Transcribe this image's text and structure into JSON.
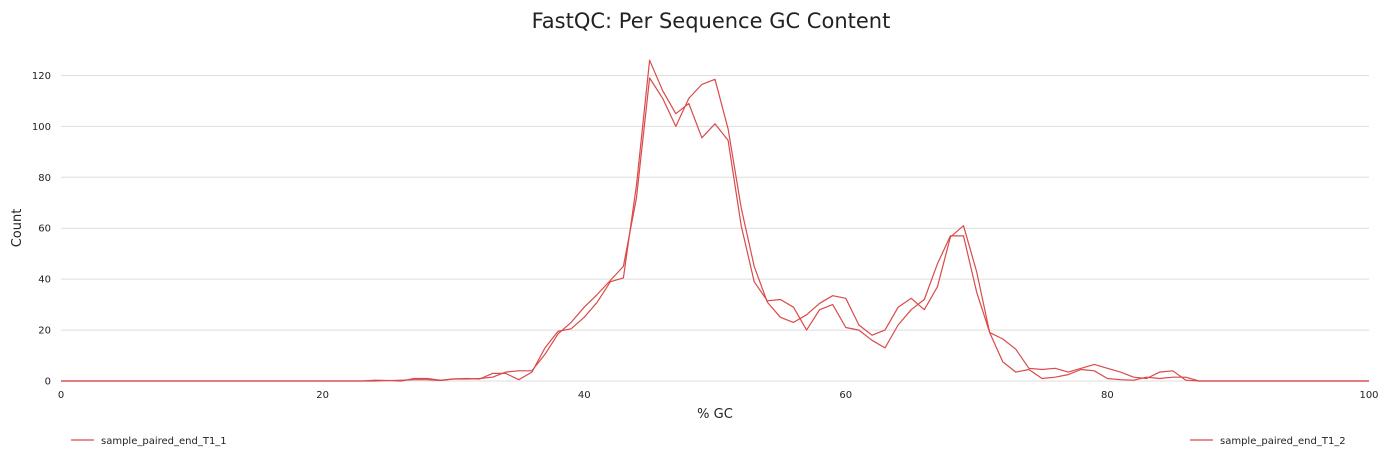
{
  "chart_data": {
    "type": "line",
    "title": "FastQC: Per Sequence GC Content",
    "xlabel": "% GC",
    "ylabel": "Count",
    "xlim": [
      0,
      100
    ],
    "ylim": [
      0,
      130
    ],
    "x_ticks": [
      0,
      20,
      40,
      60,
      80,
      100
    ],
    "y_ticks": [
      0,
      20,
      40,
      60,
      80,
      100,
      120
    ],
    "grid": "horizontal",
    "legend_position": "bottom",
    "series": [
      {
        "name": "sample_paired_end_T1_1",
        "color": "#d94a4a",
        "points": [
          [
            0,
            0
          ],
          [
            20,
            0
          ],
          [
            23,
            0
          ],
          [
            24,
            0.3
          ],
          [
            25,
            0.2
          ],
          [
            26,
            0
          ],
          [
            27,
            1
          ],
          [
            28,
            1
          ],
          [
            29,
            0.3
          ],
          [
            30,
            0.8
          ],
          [
            31,
            1
          ],
          [
            32,
            0.8
          ],
          [
            33,
            3
          ],
          [
            34,
            3
          ],
          [
            35,
            0.5
          ],
          [
            36,
            3.5
          ],
          [
            37,
            13
          ],
          [
            38,
            19.5
          ],
          [
            39,
            20.5
          ],
          [
            40,
            25
          ],
          [
            41,
            31
          ],
          [
            42,
            39
          ],
          [
            43,
            40.5
          ],
          [
            44,
            77
          ],
          [
            45,
            126
          ],
          [
            46,
            114
          ],
          [
            47,
            105
          ],
          [
            48,
            109
          ],
          [
            49,
            95.5
          ],
          [
            50,
            101
          ],
          [
            51,
            94.5
          ],
          [
            52,
            61
          ],
          [
            53,
            39
          ],
          [
            54,
            31.5
          ],
          [
            55,
            32
          ],
          [
            56,
            29
          ],
          [
            57,
            20
          ],
          [
            58,
            28
          ],
          [
            59,
            30
          ],
          [
            60,
            21
          ],
          [
            61,
            20
          ],
          [
            62,
            16
          ],
          [
            63,
            13
          ],
          [
            64,
            22
          ],
          [
            65,
            28
          ],
          [
            66,
            32
          ],
          [
            67,
            46
          ],
          [
            68,
            57
          ],
          [
            69,
            57
          ],
          [
            70,
            35
          ],
          [
            71,
            19
          ],
          [
            72,
            7.5
          ],
          [
            73,
            3.5
          ],
          [
            74,
            4.5
          ],
          [
            75,
            1
          ],
          [
            76,
            1.5
          ],
          [
            77,
            2.5
          ],
          [
            78,
            4.5
          ],
          [
            79,
            4
          ],
          [
            80,
            1
          ],
          [
            81,
            0.5
          ],
          [
            82,
            0.3
          ],
          [
            83,
            1.5
          ],
          [
            84,
            1
          ],
          [
            85,
            1.5
          ],
          [
            86,
            1.5
          ],
          [
            87,
            0
          ],
          [
            100,
            0
          ]
        ]
      },
      {
        "name": "sample_paired_end_T1_2",
        "color": "#d94a4a",
        "points": [
          [
            0,
            0
          ],
          [
            24,
            0
          ],
          [
            26,
            0.3
          ],
          [
            27,
            0.5
          ],
          [
            28,
            0.5
          ],
          [
            29,
            0.2
          ],
          [
            30,
            0.8
          ],
          [
            31,
            0.8
          ],
          [
            32,
            1
          ],
          [
            33,
            1.5
          ],
          [
            34,
            3.5
          ],
          [
            35,
            4
          ],
          [
            36,
            4
          ],
          [
            37,
            10.5
          ],
          [
            38,
            18.5
          ],
          [
            39,
            23
          ],
          [
            40,
            29
          ],
          [
            41,
            34
          ],
          [
            42,
            39.5
          ],
          [
            43,
            45
          ],
          [
            44,
            72
          ],
          [
            45,
            119
          ],
          [
            46,
            111
          ],
          [
            47,
            100
          ],
          [
            48,
            111
          ],
          [
            49,
            116.5
          ],
          [
            50,
            118.5
          ],
          [
            51,
            99
          ],
          [
            52,
            68
          ],
          [
            53,
            45
          ],
          [
            54,
            31
          ],
          [
            55,
            25
          ],
          [
            56,
            23
          ],
          [
            57,
            26
          ],
          [
            58,
            30.5
          ],
          [
            59,
            33.5
          ],
          [
            60,
            32.5
          ],
          [
            61,
            22
          ],
          [
            62,
            18
          ],
          [
            63,
            20
          ],
          [
            64,
            29
          ],
          [
            65,
            32.5
          ],
          [
            66,
            28
          ],
          [
            67,
            37
          ],
          [
            68,
            56.5
          ],
          [
            69,
            61
          ],
          [
            70,
            43
          ],
          [
            71,
            19
          ],
          [
            72,
            16.5
          ],
          [
            73,
            12.5
          ],
          [
            74,
            5
          ],
          [
            75,
            4.5
          ],
          [
            76,
            5
          ],
          [
            77,
            3.5
          ],
          [
            78,
            5
          ],
          [
            79,
            6.5
          ],
          [
            80,
            5
          ],
          [
            81,
            3.5
          ],
          [
            82,
            1.5
          ],
          [
            83,
            1
          ],
          [
            84,
            3.5
          ],
          [
            85,
            4
          ],
          [
            86,
            0.3
          ],
          [
            87,
            0
          ],
          [
            100,
            0
          ]
        ]
      }
    ]
  }
}
